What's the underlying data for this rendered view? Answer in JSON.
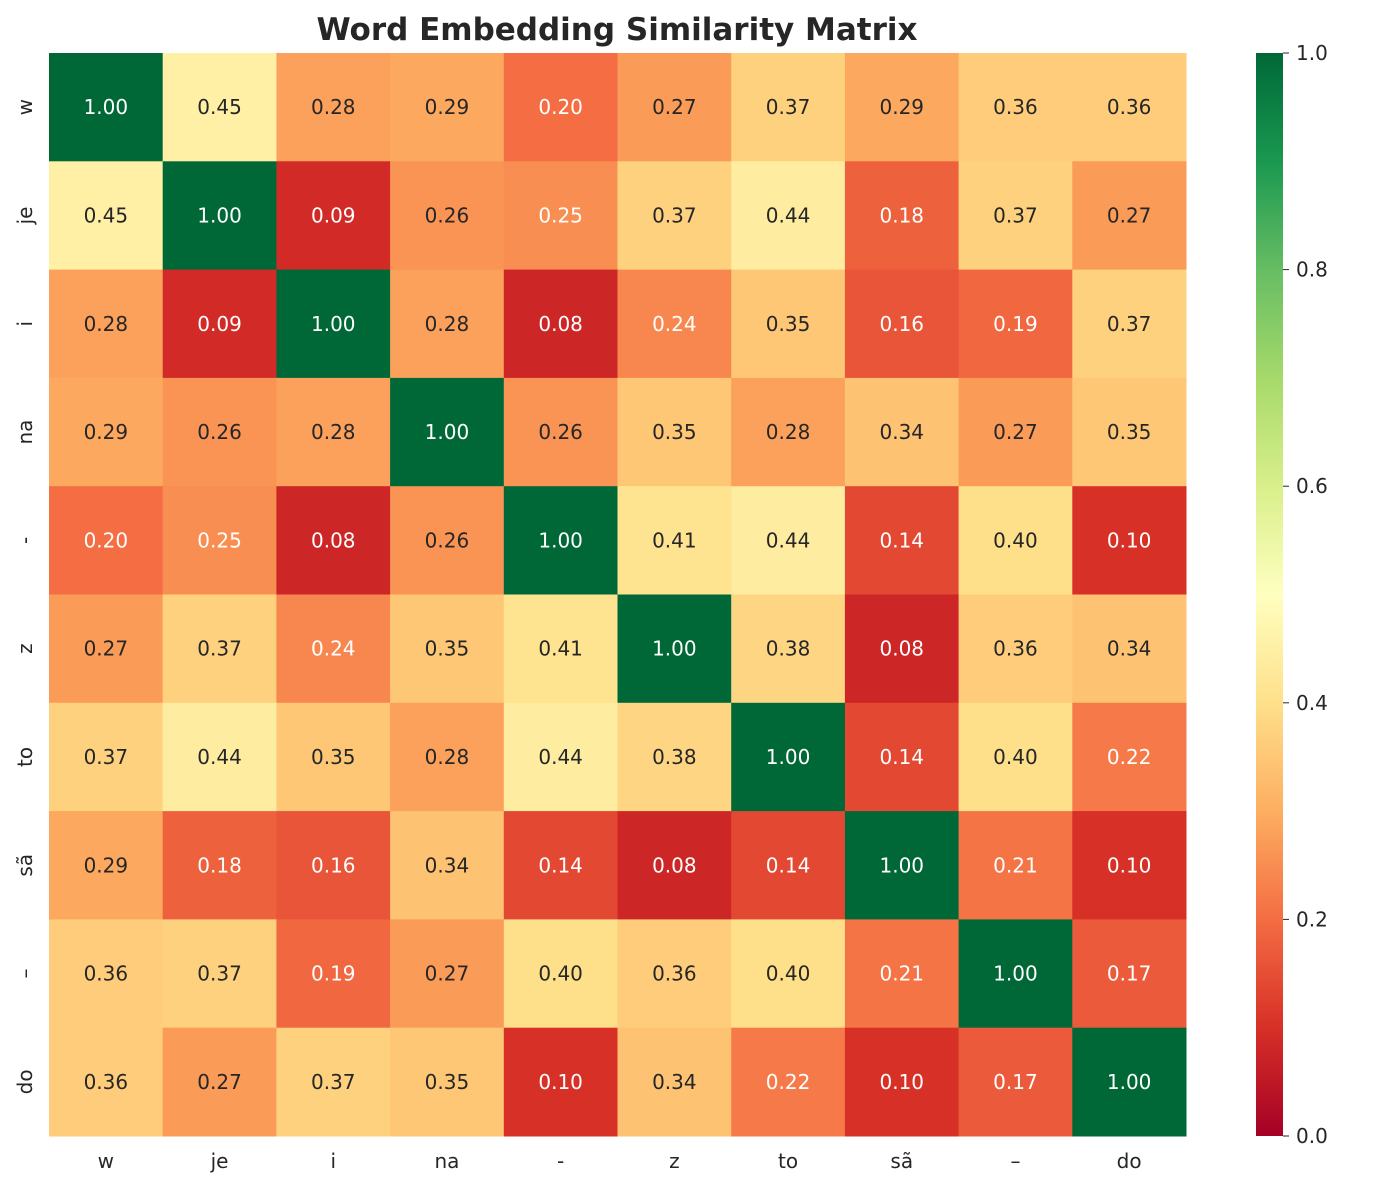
{
  "chart_data": {
    "type": "heatmap",
    "title": "Word Embedding Similarity Matrix",
    "x_labels": [
      "w",
      "je",
      "i",
      "na",
      "-",
      "z",
      "to",
      "sã",
      "–",
      "do"
    ],
    "y_labels": [
      "w",
      "je",
      "i",
      "na",
      "-",
      "z",
      "to",
      "sã",
      "–",
      "do"
    ],
    "values": [
      [
        1.0,
        0.45,
        0.28,
        0.29,
        0.2,
        0.27,
        0.37,
        0.29,
        0.36,
        0.36
      ],
      [
        0.45,
        1.0,
        0.09,
        0.26,
        0.25,
        0.37,
        0.44,
        0.18,
        0.37,
        0.27
      ],
      [
        0.28,
        0.09,
        1.0,
        0.28,
        0.08,
        0.24,
        0.35,
        0.16,
        0.19,
        0.37
      ],
      [
        0.29,
        0.26,
        0.28,
        1.0,
        0.26,
        0.35,
        0.28,
        0.34,
        0.27,
        0.35
      ],
      [
        0.2,
        0.25,
        0.08,
        0.26,
        1.0,
        0.41,
        0.44,
        0.14,
        0.4,
        0.1
      ],
      [
        0.27,
        0.37,
        0.24,
        0.35,
        0.41,
        1.0,
        0.38,
        0.08,
        0.36,
        0.34
      ],
      [
        0.37,
        0.44,
        0.35,
        0.28,
        0.44,
        0.38,
        1.0,
        0.14,
        0.4,
        0.22
      ],
      [
        0.29,
        0.18,
        0.16,
        0.34,
        0.14,
        0.08,
        0.14,
        1.0,
        0.21,
        0.1
      ],
      [
        0.36,
        0.37,
        0.19,
        0.27,
        0.4,
        0.36,
        0.4,
        0.21,
        1.0,
        0.17
      ],
      [
        0.36,
        0.27,
        0.37,
        0.35,
        0.1,
        0.34,
        0.22,
        0.1,
        0.17,
        1.0
      ]
    ],
    "colormap": "RdYlGn",
    "colormap_stops": [
      "#a50026",
      "#d73027",
      "#f46d43",
      "#fdae61",
      "#fee08b",
      "#ffffbf",
      "#d9ef8b",
      "#a6d96a",
      "#66bd63",
      "#1a9850",
      "#006837"
    ],
    "vmin": 0.0,
    "vmax": 1.0,
    "annotation_format": "0.00",
    "colorbar": {
      "ticks": [
        0.0,
        0.2,
        0.4,
        0.6,
        0.8,
        1.0
      ],
      "tick_labels": [
        "0.0",
        "0.2",
        "0.4",
        "0.6",
        "0.8",
        "1.0"
      ],
      "placement": "right"
    }
  }
}
